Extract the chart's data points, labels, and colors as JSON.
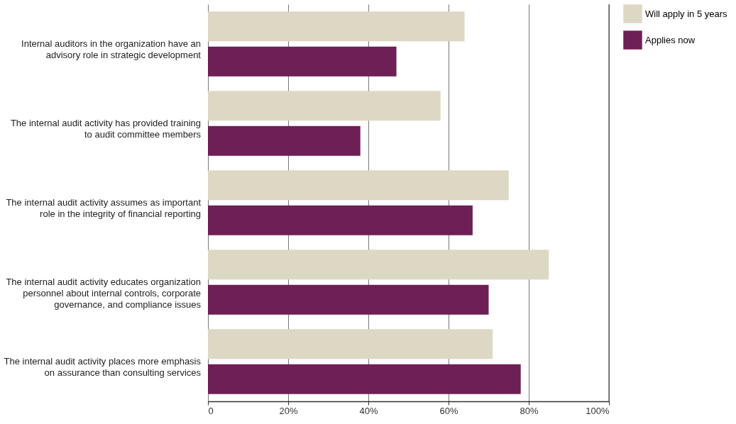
{
  "chart_data": {
    "type": "bar",
    "orientation": "horizontal",
    "categories": [
      "Internal auditors in the organization have an advisory role in strategic development",
      "The internal audit activity has provided training to audit committee members",
      "The internal audit activity assumes as important role in the integrity of financial reporting",
      "The internal audit activity educates organization personnel about internal controls, corporate governance, and compliance issues",
      "The internal audit activity places more emphasis on assurance than consulting services"
    ],
    "series": [
      {
        "name": "Will apply in 5 years",
        "color": "#ddd8c4",
        "values": [
          64,
          58,
          75,
          85,
          71
        ]
      },
      {
        "name": "Applies now",
        "color": "#6e1f55",
        "values": [
          47,
          38,
          66,
          70,
          78
        ]
      }
    ],
    "xlim": [
      0,
      100
    ],
    "xticks": [
      0,
      {
        "value": 20,
        "label": "20%"
      },
      {
        "value": 40,
        "label": "40%"
      },
      {
        "value": 60,
        "label": "60%"
      },
      {
        "value": 80,
        "label": "80%"
      },
      {
        "value": 100,
        "label": "100%"
      }
    ],
    "grid": "x",
    "legend": "right"
  }
}
